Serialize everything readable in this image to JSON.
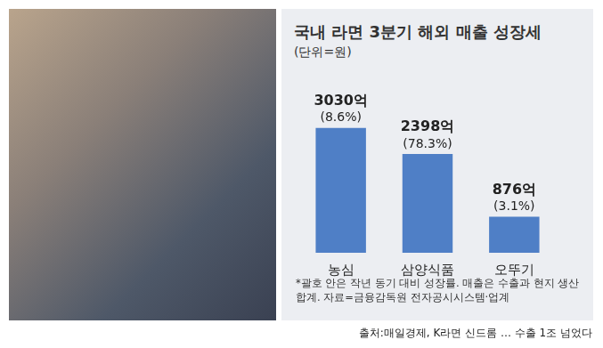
{
  "chart_data": {
    "type": "bar",
    "title": "국내 라면 3분기 해외 매출 성장세",
    "subtitle": "(단위=원)",
    "categories": [
      "농심",
      "삼양식품",
      "오뚜기"
    ],
    "values": [
      3030,
      2398,
      876
    ],
    "value_labels": [
      "3030억",
      "2398억",
      "876억"
    ],
    "growth": [
      8.6,
      78.3,
      3.1
    ],
    "growth_labels": [
      "(8.6%)",
      "(78.3%)",
      "(3.1%)"
    ],
    "color": "#4f7fc6",
    "ylim": [
      0,
      3500
    ],
    "grid": false,
    "data_labels": true,
    "tick_labels": "x",
    "annotations": [
      "*괄호 안은 작년 동기 대비 성장률. 매출은 수출과 현지 생산 합계. 자료=금융감독원 전자공시시스템·업계"
    ],
    "source": "출처:매일경제, K라면 신드롬 … 수출 1조 넘었다"
  }
}
